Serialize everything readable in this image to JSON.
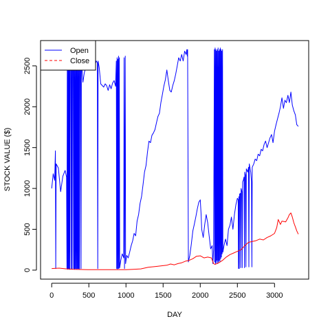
{
  "chart_data": {
    "type": "line",
    "title": "",
    "xlabel": "DAY",
    "ylabel": "STOCK VALUE ($)",
    "xlim": [
      -150,
      3460
    ],
    "ylim": [
      -110,
      2810
    ],
    "xticks": [
      0,
      500,
      1000,
      1500,
      2000,
      2500,
      3000
    ],
    "yticks": [
      0,
      500,
      1000,
      1500,
      2000,
      2500
    ],
    "grid": false,
    "legend": {
      "placement": "top-left",
      "entries": [
        "Open",
        "Close"
      ]
    },
    "series": [
      {
        "name": "Open",
        "color": "#0000ff",
        "line_style": "solid",
        "points": [
          [
            0,
            1000
          ],
          [
            20,
            1180
          ],
          [
            40,
            1100
          ],
          [
            50,
            1460
          ],
          [
            55,
            20
          ],
          [
            60,
            1300
          ],
          [
            90,
            1250
          ],
          [
            120,
            960
          ],
          [
            150,
            1150
          ],
          [
            180,
            1220
          ],
          [
            200,
            1140
          ],
          [
            205,
            20
          ],
          [
            210,
            2560
          ],
          [
            215,
            10
          ],
          [
            220,
            2600
          ],
          [
            225,
            20
          ],
          [
            230,
            2620
          ],
          [
            235,
            10
          ],
          [
            240,
            2500
          ],
          [
            245,
            10
          ],
          [
            250,
            2600
          ],
          [
            260,
            2580
          ],
          [
            265,
            20
          ],
          [
            270,
            2540
          ],
          [
            275,
            10
          ],
          [
            280,
            2600
          ],
          [
            290,
            2560
          ],
          [
            295,
            20
          ],
          [
            300,
            2600
          ],
          [
            305,
            10
          ],
          [
            310,
            2520
          ],
          [
            315,
            15
          ],
          [
            320,
            2560
          ],
          [
            325,
            20
          ],
          [
            330,
            2600
          ],
          [
            335,
            10
          ],
          [
            340,
            2580
          ],
          [
            345,
            20
          ],
          [
            350,
            2560
          ],
          [
            355,
            15
          ],
          [
            360,
            2620
          ],
          [
            365,
            20
          ],
          [
            370,
            2560
          ],
          [
            375,
            10
          ],
          [
            380,
            2600
          ],
          [
            390,
            2560
          ],
          [
            395,
            20
          ],
          [
            400,
            2620
          ],
          [
            410,
            2440
          ],
          [
            420,
            2300
          ],
          [
            440,
            2420
          ],
          [
            460,
            2480
          ],
          [
            480,
            2460
          ],
          [
            500,
            2540
          ],
          [
            520,
            2580
          ],
          [
            540,
            2600
          ],
          [
            560,
            2520
          ],
          [
            580,
            2500
          ],
          [
            600,
            2560
          ],
          [
            615,
            2540
          ],
          [
            620,
            20
          ],
          [
            625,
            2560
          ],
          [
            640,
            2480
          ],
          [
            660,
            2280
          ],
          [
            680,
            2260
          ],
          [
            700,
            2240
          ],
          [
            720,
            2280
          ],
          [
            740,
            2260
          ],
          [
            760,
            2200
          ],
          [
            780,
            2270
          ],
          [
            800,
            2220
          ],
          [
            820,
            2290
          ],
          [
            840,
            2320
          ],
          [
            860,
            2250
          ],
          [
            870,
            2560
          ],
          [
            875,
            20
          ],
          [
            880,
            2600
          ],
          [
            885,
            15
          ],
          [
            890,
            2580
          ],
          [
            895,
            20
          ],
          [
            900,
            2620
          ],
          [
            905,
            20
          ],
          [
            910,
            2600
          ],
          [
            915,
            30
          ],
          [
            930,
            120
          ],
          [
            950,
            200
          ],
          [
            970,
            150
          ],
          [
            975,
            2600
          ],
          [
            980,
            20
          ],
          [
            990,
            2620
          ],
          [
            995,
            80
          ],
          [
            1010,
            180
          ],
          [
            1030,
            150
          ],
          [
            1050,
            220
          ],
          [
            1070,
            300
          ],
          [
            1090,
            360
          ],
          [
            1110,
            450
          ],
          [
            1130,
            420
          ],
          [
            1150,
            600
          ],
          [
            1170,
            680
          ],
          [
            1190,
            820
          ],
          [
            1210,
            900
          ],
          [
            1230,
            1050
          ],
          [
            1250,
            1200
          ],
          [
            1270,
            1280
          ],
          [
            1290,
            1450
          ],
          [
            1310,
            1580
          ],
          [
            1330,
            1560
          ],
          [
            1350,
            1650
          ],
          [
            1370,
            1680
          ],
          [
            1390,
            1720
          ],
          [
            1410,
            1800
          ],
          [
            1430,
            1880
          ],
          [
            1450,
            1920
          ],
          [
            1470,
            2050
          ],
          [
            1490,
            2150
          ],
          [
            1510,
            2250
          ],
          [
            1530,
            2330
          ],
          [
            1550,
            2450
          ],
          [
            1570,
            2320
          ],
          [
            1590,
            2200
          ],
          [
            1610,
            2180
          ],
          [
            1630,
            2260
          ],
          [
            1650,
            2320
          ],
          [
            1670,
            2400
          ],
          [
            1690,
            2500
          ],
          [
            1710,
            2600
          ],
          [
            1730,
            2560
          ],
          [
            1750,
            2640
          ],
          [
            1770,
            2560
          ],
          [
            1790,
            2680
          ],
          [
            1810,
            2640
          ],
          [
            1820,
            2700
          ],
          [
            1825,
            2620
          ],
          [
            1830,
            2700
          ],
          [
            1840,
            100
          ],
          [
            1860,
            180
          ],
          [
            1880,
            320
          ],
          [
            1900,
            480
          ],
          [
            1920,
            560
          ],
          [
            1940,
            650
          ],
          [
            1960,
            750
          ],
          [
            1980,
            830
          ],
          [
            2000,
            860
          ],
          [
            2010,
            700
          ],
          [
            2020,
            500
          ],
          [
            2040,
            400
          ],
          [
            2060,
            560
          ],
          [
            2080,
            680
          ],
          [
            2100,
            580
          ],
          [
            2120,
            420
          ],
          [
            2140,
            260
          ],
          [
            2160,
            300
          ],
          [
            2170,
            80
          ],
          [
            2180,
            250
          ],
          [
            2190,
            2700
          ],
          [
            2195,
            100
          ],
          [
            2200,
            2720
          ],
          [
            2205,
            80
          ],
          [
            2210,
            2700
          ],
          [
            2215,
            90
          ],
          [
            2220,
            2680
          ],
          [
            2225,
            120
          ],
          [
            2230,
            2700
          ],
          [
            2235,
            80
          ],
          [
            2240,
            2720
          ],
          [
            2245,
            100
          ],
          [
            2250,
            2680
          ],
          [
            2255,
            120
          ],
          [
            2260,
            2700
          ],
          [
            2265,
            100
          ],
          [
            2270,
            2720
          ],
          [
            2275,
            140
          ],
          [
            2280,
            2700
          ],
          [
            2285,
            160
          ],
          [
            2290,
            2680
          ],
          [
            2295,
            200
          ],
          [
            2300,
            2700
          ],
          [
            2305,
            220
          ],
          [
            2320,
            300
          ],
          [
            2340,
            380
          ],
          [
            2360,
            300
          ],
          [
            2380,
            500
          ],
          [
            2400,
            550
          ],
          [
            2420,
            650
          ],
          [
            2440,
            500
          ],
          [
            2460,
            680
          ],
          [
            2480,
            800
          ],
          [
            2500,
            880
          ],
          [
            2510,
            860
          ],
          [
            2515,
            20
          ],
          [
            2520,
            900
          ],
          [
            2525,
            20
          ],
          [
            2530,
            930
          ],
          [
            2540,
            940
          ],
          [
            2545,
            30
          ],
          [
            2550,
            1000
          ],
          [
            2560,
            960
          ],
          [
            2565,
            30
          ],
          [
            2570,
            1080
          ],
          [
            2580,
            1100
          ],
          [
            2590,
            1140
          ],
          [
            2595,
            30
          ],
          [
            2600,
            1200
          ],
          [
            2610,
            1160
          ],
          [
            2615,
            40
          ],
          [
            2620,
            1240
          ],
          [
            2640,
            1200
          ],
          [
            2650,
            1260
          ],
          [
            2655,
            40
          ],
          [
            2660,
            1300
          ],
          [
            2680,
            1200
          ],
          [
            2690,
            1080
          ],
          [
            2695,
            40
          ],
          [
            2700,
            1260
          ],
          [
            2720,
            1300
          ],
          [
            2740,
            1360
          ],
          [
            2760,
            1340
          ],
          [
            2780,
            1420
          ],
          [
            2800,
            1400
          ],
          [
            2820,
            1480
          ],
          [
            2840,
            1460
          ],
          [
            2860,
            1540
          ],
          [
            2880,
            1580
          ],
          [
            2900,
            1500
          ],
          [
            2920,
            1560
          ],
          [
            2940,
            1620
          ],
          [
            2960,
            1660
          ],
          [
            2980,
            1560
          ],
          [
            3000,
            1700
          ],
          [
            3020,
            1780
          ],
          [
            3040,
            1850
          ],
          [
            3060,
            1920
          ],
          [
            3080,
            2000
          ],
          [
            3100,
            2110
          ],
          [
            3120,
            1980
          ],
          [
            3140,
            2080
          ],
          [
            3160,
            2050
          ],
          [
            3180,
            2140
          ],
          [
            3200,
            2050
          ],
          [
            3220,
            2180
          ],
          [
            3240,
            2020
          ],
          [
            3260,
            1950
          ],
          [
            3280,
            1900
          ],
          [
            3300,
            1780
          ],
          [
            3320,
            1760
          ]
        ]
      },
      {
        "name": "Close",
        "color": "#ff0000",
        "line_style": "solid",
        "points": [
          [
            0,
            20
          ],
          [
            100,
            25
          ],
          [
            200,
            15
          ],
          [
            300,
            10
          ],
          [
            400,
            8
          ],
          [
            500,
            5
          ],
          [
            600,
            5
          ],
          [
            700,
            5
          ],
          [
            800,
            5
          ],
          [
            900,
            5
          ],
          [
            1000,
            5
          ],
          [
            1100,
            10
          ],
          [
            1200,
            15
          ],
          [
            1300,
            35
          ],
          [
            1400,
            45
          ],
          [
            1500,
            55
          ],
          [
            1550,
            60
          ],
          [
            1600,
            75
          ],
          [
            1650,
            65
          ],
          [
            1700,
            80
          ],
          [
            1750,
            90
          ],
          [
            1800,
            110
          ],
          [
            1850,
            120
          ],
          [
            1900,
            140
          ],
          [
            1950,
            170
          ],
          [
            2000,
            175
          ],
          [
            2050,
            150
          ],
          [
            2100,
            160
          ],
          [
            2150,
            150
          ],
          [
            2180,
            80
          ],
          [
            2200,
            70
          ],
          [
            2250,
            90
          ],
          [
            2300,
            120
          ],
          [
            2350,
            160
          ],
          [
            2400,
            190
          ],
          [
            2450,
            210
          ],
          [
            2500,
            230
          ],
          [
            2550,
            250
          ],
          [
            2600,
            300
          ],
          [
            2650,
            340
          ],
          [
            2700,
            350
          ],
          [
            2750,
            360
          ],
          [
            2800,
            380
          ],
          [
            2850,
            370
          ],
          [
            2900,
            400
          ],
          [
            2950,
            420
          ],
          [
            3000,
            450
          ],
          [
            3030,
            520
          ],
          [
            3050,
            620
          ],
          [
            3080,
            560
          ],
          [
            3100,
            600
          ],
          [
            3150,
            590
          ],
          [
            3180,
            640
          ],
          [
            3200,
            680
          ],
          [
            3220,
            700
          ],
          [
            3240,
            650
          ],
          [
            3260,
            580
          ],
          [
            3280,
            530
          ],
          [
            3300,
            480
          ],
          [
            3320,
            440
          ]
        ]
      }
    ]
  }
}
